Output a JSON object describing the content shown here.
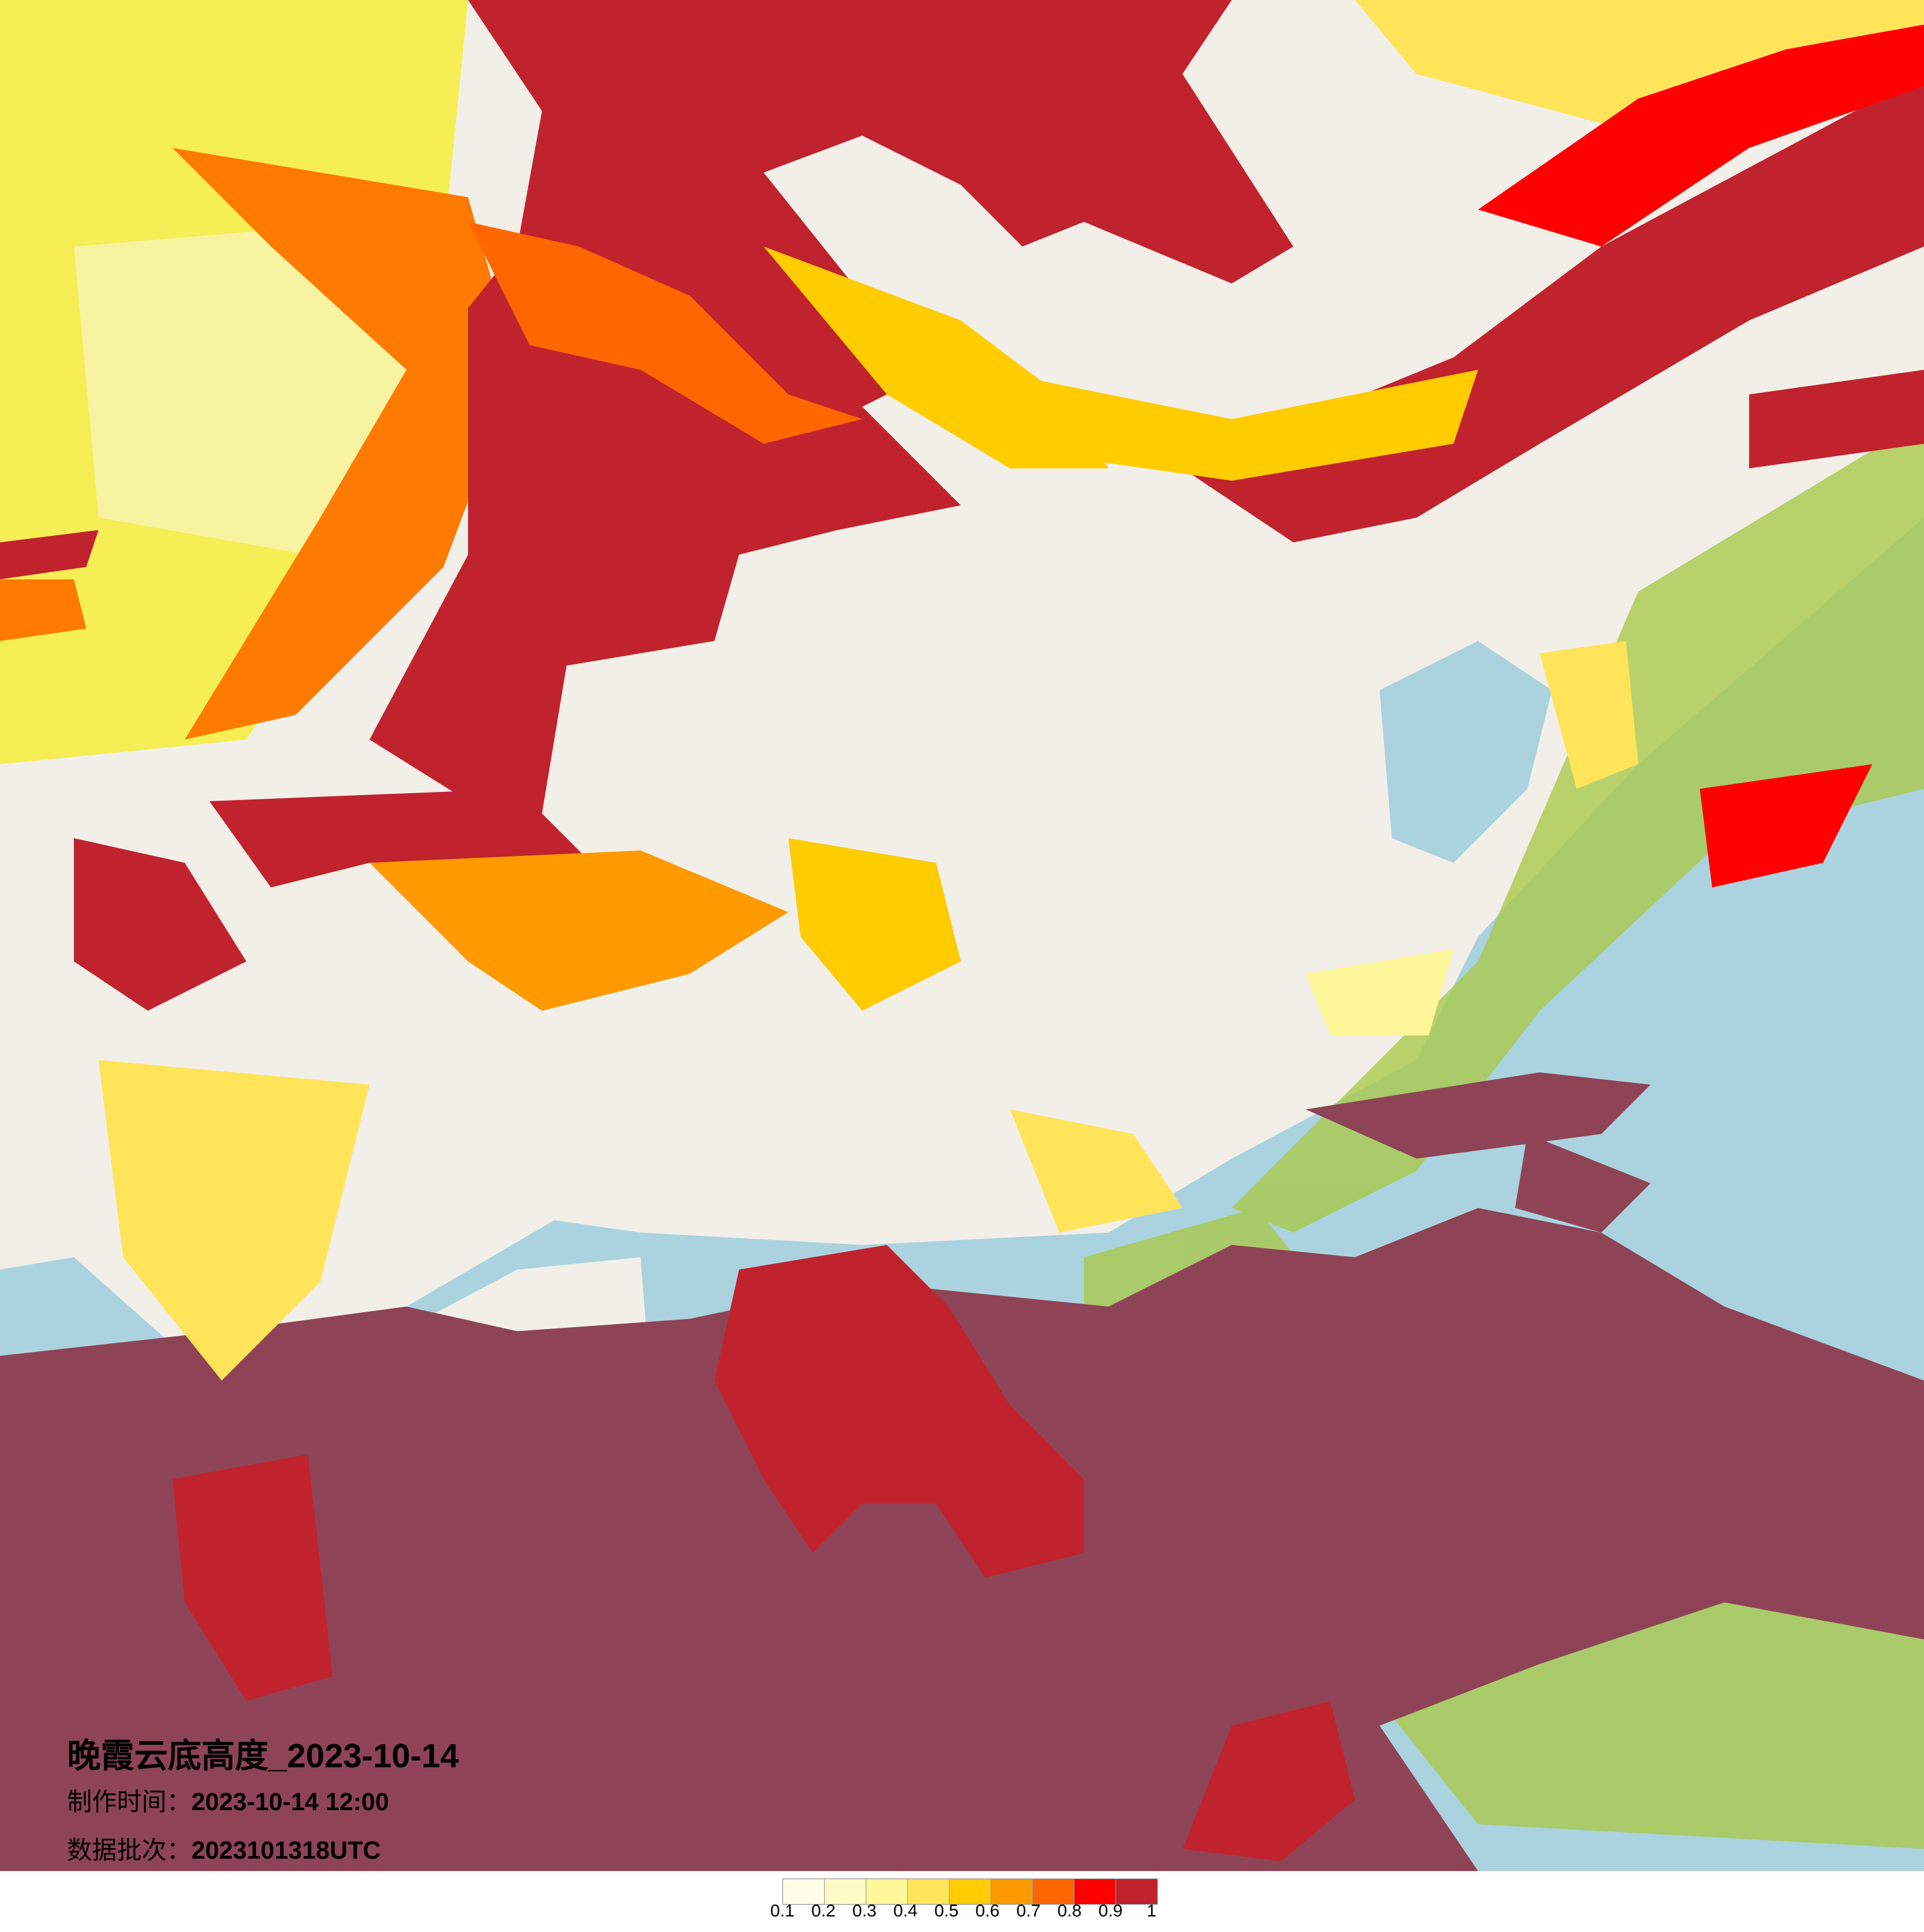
{
  "title": "晚霞云底高度_2023-10-14",
  "made_time_label": "制作时间：",
  "made_time_value": "2023-10-14 12:00",
  "batch_label": "数据批次：",
  "batch_value": "2023101318UTC",
  "legend": {
    "ticks": [
      "0.1",
      "0.2",
      "0.3",
      "0.4",
      "0.5",
      "0.6",
      "0.7",
      "0.8",
      "0.9",
      "1"
    ],
    "colors": [
      "#fffde8",
      "#fffac6",
      "#fff799",
      "#ffe45a",
      "#ffcc00",
      "#ff9900",
      "#ff6600",
      "#ff0000",
      "#c0232e"
    ]
  },
  "map_colors": {
    "land": "#f2efe9",
    "sea": "#aad3df",
    "cloud_dark": "#8e4456",
    "overlay_green": "#a9c94b"
  }
}
